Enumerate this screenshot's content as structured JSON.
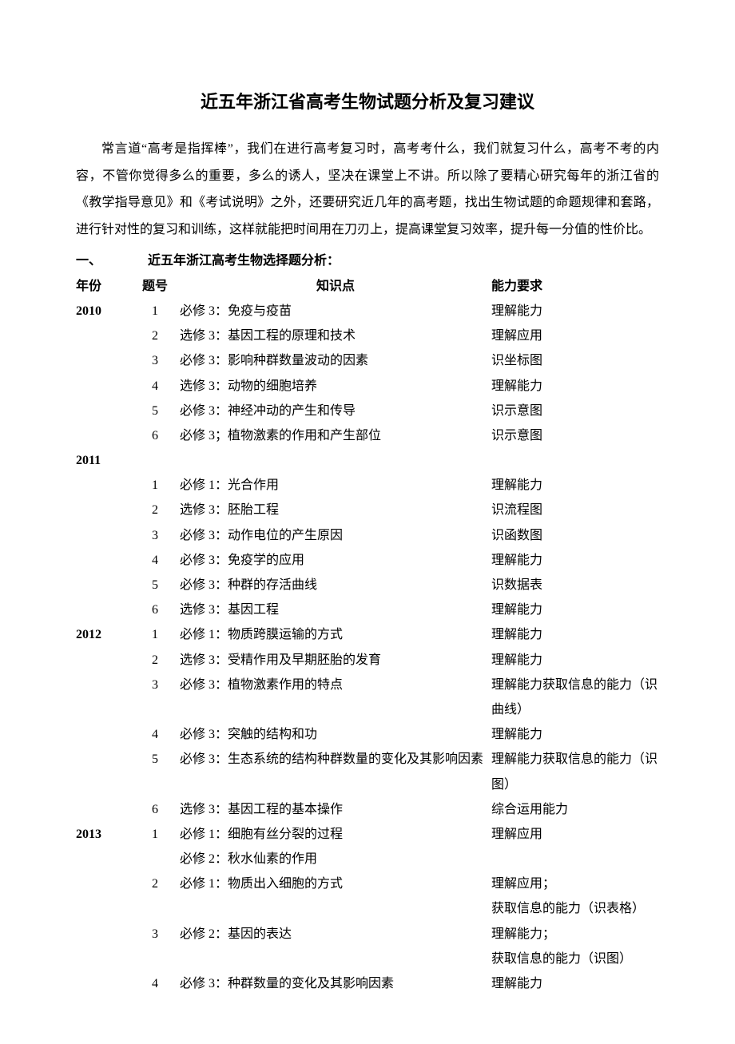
{
  "title": "近五年浙江省高考生物试题分析及复习建议",
  "intro": "常言道“高考是指挥棒”，我们在进行高考复习时，高考考什么，我们就复习什么，高考不考的内容，不管你觉得多么的重要，多么的诱人，坚决在课堂上不讲。所以除了要精心研究每年的浙江省的《教学指导意见》和《考试说明》之外，还要研究近几年的高考题，找出生物试题的命题规律和套路，进行针对性的复习和训练，这样就能把时间用在刀刃上，提高课堂复习效率，提升每一分值的性价比。",
  "section1_num": "一、",
  "section1_title": "近五年浙江高考生物选择题分析：",
  "headers": {
    "year": "年份",
    "num": "题号",
    "topic": "知识点",
    "skill": "能力要求"
  },
  "rows": [
    {
      "year": "2010",
      "num": "1",
      "topic": "必修 3：免疫与疫苗",
      "skill": "理解能力"
    },
    {
      "year": "",
      "num": "2",
      "topic": "选修 3：基因工程的原理和技术",
      "skill": "理解应用"
    },
    {
      "year": "",
      "num": "3",
      "topic": "必修 3：影响种群数量波动的因素",
      "skill": "识坐标图"
    },
    {
      "year": "",
      "num": "4",
      "topic": "选修 3：动物的细胞培养",
      "skill": "理解能力"
    },
    {
      "year": "",
      "num": "5",
      "topic": "必修 3：神经冲动的产生和传导",
      "skill": "识示意图"
    },
    {
      "year": "",
      "num": "6",
      "topic": "必修 3；植物激素的作用和产生部位",
      "skill": "识示意图"
    },
    {
      "year": "2011",
      "num": "",
      "topic": "",
      "skill": ""
    },
    {
      "year": "",
      "num": "1",
      "topic": "必修 1：光合作用",
      "skill": "理解能力"
    },
    {
      "year": "",
      "num": "2",
      "topic": "选修 3：胚胎工程",
      "skill": "识流程图"
    },
    {
      "year": "",
      "num": "3",
      "topic": "必修 3：动作电位的产生原因",
      "skill": "识函数图"
    },
    {
      "year": "",
      "num": "4",
      "topic": "必修 3：免疫学的应用",
      "skill": "理解能力"
    },
    {
      "year": "",
      "num": "5",
      "topic": "必修 3：种群的存活曲线",
      "skill": "识数据表"
    },
    {
      "year": "",
      "num": "6",
      "topic": "选修 3：基因工程",
      "skill": "理解能力"
    },
    {
      "year": "2012",
      "num": "1",
      "topic": "必修 1：物质跨膜运输的方式",
      "skill": "理解能力"
    },
    {
      "year": "",
      "num": "2",
      "topic": "选修 3：受精作用及早期胚胎的发育",
      "skill": "理解能力"
    },
    {
      "year": "",
      "num": "3",
      "topic": "必修 3：植物激素作用的特点",
      "skill": "理解能力获取信息的能力（识曲线）"
    },
    {
      "year": "",
      "num": "4",
      "topic": "必修 3：突触的结构和功",
      "skill": "理解能力"
    },
    {
      "year": "",
      "num": "5",
      "topic": "必修 3：生态系统的结构种群数量的变化及其影响因素",
      "skill": "理解能力获取信息的能力（识图）"
    },
    {
      "year": "",
      "num": "6",
      "topic": "选修 3：基因工程的基本操作",
      "skill": "综合运用能力"
    },
    {
      "year": "2013",
      "num": "1",
      "topic": "必修 1：细胞有丝分裂的过程\n必修 2：秋水仙素的作用",
      "skill": "理解应用"
    },
    {
      "year": "",
      "num": "2",
      "topic": "必修 1：物质出入细胞的方式",
      "skill": "理解应用；\n获取信息的能力（识表格）"
    },
    {
      "year": "",
      "num": "3",
      "topic": "必修 2：基因的表达",
      "skill": "理解能力；\n获取信息的能力（识图）"
    },
    {
      "year": "",
      "num": "4",
      "topic": "必修 3：种群数量的变化及其影响因素",
      "skill": "理解能力"
    }
  ]
}
